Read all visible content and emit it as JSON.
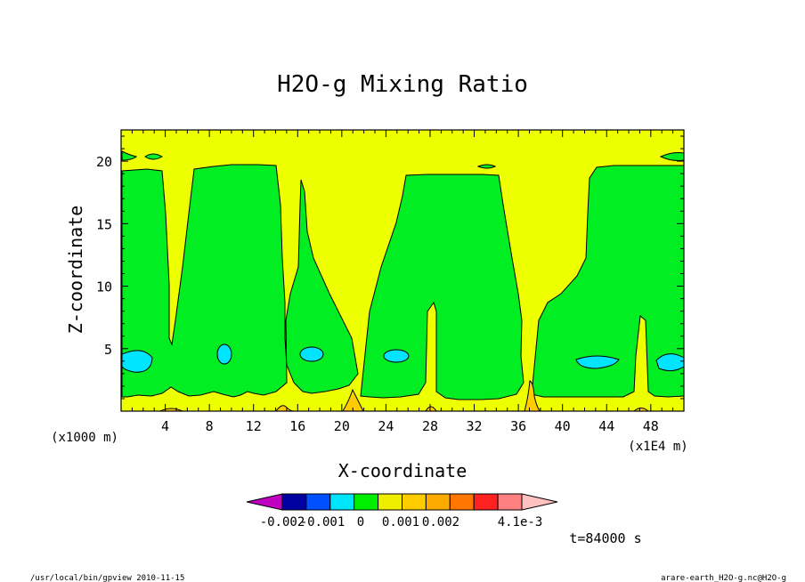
{
  "chart_data": {
    "type": "contour",
    "title": "H2O-g Mixing Ratio",
    "xlabel": "X-coordinate",
    "ylabel": "Z-coordinate",
    "x_unit_label": "(x1E4 m)",
    "y_unit_label": "(x1000 m)",
    "xlim": [
      0,
      51
    ],
    "ylim": [
      0,
      22.5
    ],
    "xticks": [
      4,
      8,
      12,
      16,
      20,
      24,
      28,
      32,
      36,
      40,
      44,
      48
    ],
    "yticks": [
      5,
      10,
      15,
      20
    ],
    "colorbar": {
      "levels": [
        "-0.002",
        "-0.001",
        "0",
        "0.001",
        "0.002",
        "4.1e-3"
      ],
      "colors": [
        "#c000c0",
        "#0000a0",
        "#0050ff",
        "#00e5ff",
        "#00ee00",
        "#eeee00",
        "#ffcc00",
        "#ffaa00",
        "#ff7700",
        "#ff2020",
        "#ff8080",
        "#ffc0c0"
      ]
    },
    "regions": {
      "background_color": "#eeff00",
      "low_level_color": "#ffcc00",
      "green_color": "#00ee22",
      "cyan_color": "#00e5ff"
    },
    "time_label": "t=84000 s"
  },
  "footer": {
    "left": "/usr/local/bin/gpview  2010-11-15",
    "right": "arare-earth_H2O-g.nc@H2O-g"
  }
}
